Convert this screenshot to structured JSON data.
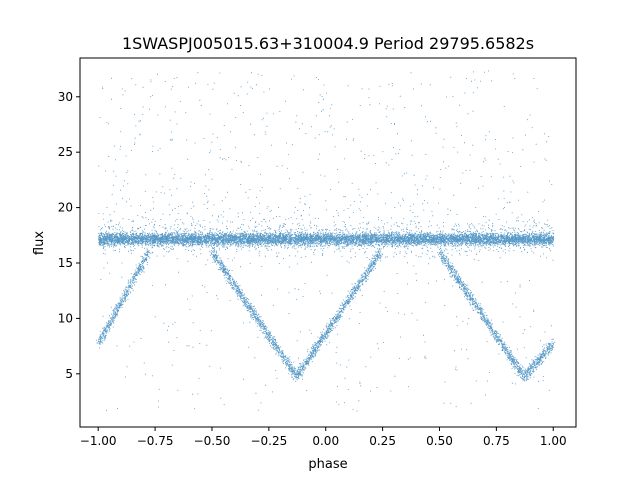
{
  "chart_data": {
    "type": "scatter",
    "title": "1SWASPJ005015.63+310004.9 Period 29795.6582s",
    "xlabel": "phase",
    "ylabel": "flux",
    "xlim": [
      -1.08,
      1.1
    ],
    "ylim": [
      0.2,
      33.5
    ],
    "xticks": [
      -1.0,
      -0.75,
      -0.5,
      -0.25,
      0.0,
      0.25,
      0.5,
      0.75,
      1.0
    ],
    "xtick_labels": [
      "−1.00",
      "−0.75",
      "−0.50",
      "−0.25",
      "0.00",
      "0.25",
      "0.50",
      "0.75",
      "1.00"
    ],
    "yticks": [
      5,
      10,
      15,
      20,
      25,
      30
    ],
    "ytick_labels": [
      "5",
      "10",
      "15",
      "20",
      "25",
      "30"
    ],
    "grid": false,
    "legend": "none",
    "series": [
      {
        "color": "#1f77b4",
        "marker": "point",
        "components": [
          {
            "kind": "constant-band",
            "x": [
              -1.0,
              1.0
            ],
            "y": 17.2,
            "spread": 0.7
          },
          {
            "kind": "eclipse-track",
            "x": [
              -1.0,
              -0.78
            ],
            "y": [
              7.8,
              16.0
            ]
          },
          {
            "kind": "eclipse-track",
            "x": [
              -0.5,
              -0.13
            ],
            "y": [
              16.0,
              4.8
            ]
          },
          {
            "kind": "eclipse-track",
            "x": [
              -0.13,
              0.24
            ],
            "y": [
              4.8,
              16.0
            ]
          },
          {
            "kind": "eclipse-track",
            "x": [
              0.5,
              0.87
            ],
            "y": [
              16.0,
              4.8
            ]
          },
          {
            "kind": "eclipse-track",
            "x": [
              0.87,
              1.0
            ],
            "y": [
              4.8,
              7.8
            ]
          },
          {
            "kind": "outliers",
            "x": [
              -1.0,
              1.0
            ],
            "y": [
              1.5,
              32.5
            ]
          }
        ]
      }
    ]
  }
}
